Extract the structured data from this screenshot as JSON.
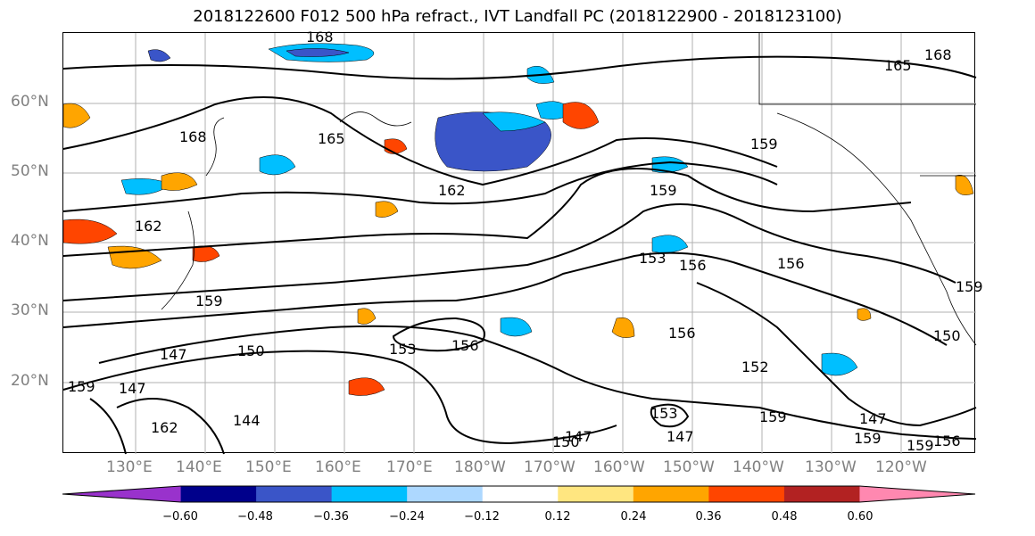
{
  "title": "2018122600 F012 500 hPa refract., IVT Landfall PC (2018122900 - 2018123100)",
  "lat_labels": [
    "60°N",
    "50°N",
    "40°N",
    "30°N",
    "20°N"
  ],
  "lon_labels": [
    "130°E",
    "140°E",
    "150°E",
    "160°E",
    "170°E",
    "180°W",
    "170°W",
    "160°W",
    "150°W",
    "140°W",
    "130°W",
    "120°W"
  ],
  "contour_labels": [
    "168",
    "165",
    "168",
    "162",
    "159",
    "156",
    "153",
    "156",
    "159",
    "162",
    "159",
    "150",
    "147",
    "153",
    "156",
    "147",
    "144",
    "162",
    "150",
    "147",
    "152",
    "147",
    "156",
    "159",
    "147",
    "159",
    "159",
    "156",
    "150",
    "159",
    "165",
    "168",
    "153",
    "159"
  ],
  "colorbar": {
    "ticks": [
      "−0.60",
      "−0.48",
      "−0.36",
      "−0.24",
      "−0.12",
      "0.12",
      "0.24",
      "0.36",
      "0.48",
      "0.60"
    ],
    "colors": [
      "#9932cc",
      "#00008b",
      "#3a55c8",
      "#00bfff",
      "#add8ff",
      "#ffffff",
      "#ffe680",
      "#ffa500",
      "#ff4500",
      "#b22222",
      "#ff88b0"
    ]
  }
}
